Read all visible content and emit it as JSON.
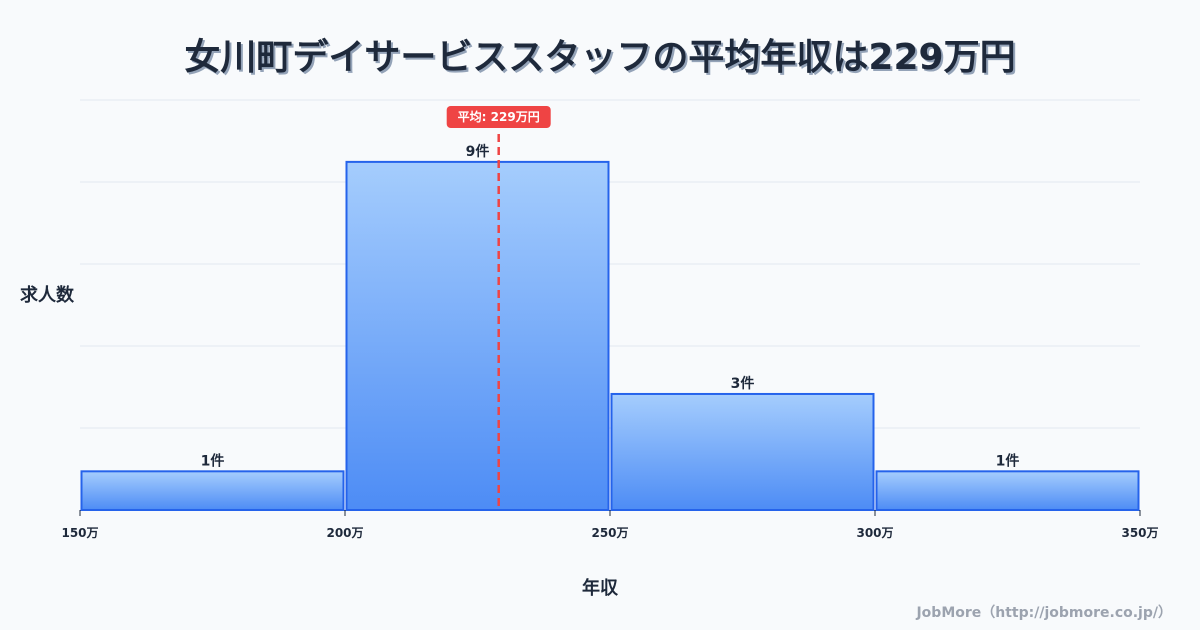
{
  "title": "女川町デイサービススタッフの平均年収は229万円",
  "axis": {
    "ylabel": "求人数",
    "xlabel": "年収"
  },
  "mean_label": "平均: 229万円",
  "credit": "JobMore（http://jobmore.co.jp/）",
  "colors": {
    "bar_top": "#a5cdfd",
    "bar_bottom": "#4d8cf5",
    "bar_stroke": "#2563eb",
    "mean_line": "#ef4444",
    "grid": "#e2e8f0",
    "text": "#1e293b"
  },
  "chart_data": {
    "type": "bar",
    "title": "女川町デイサービススタッフの平均年収は229万円",
    "xlabel": "年収",
    "ylabel": "求人数",
    "bins": [
      {
        "from": 150,
        "to": 200,
        "count": 1,
        "label": "1件"
      },
      {
        "from": 200,
        "to": 250,
        "count": 9,
        "label": "9件"
      },
      {
        "from": 250,
        "to": 300,
        "count": 3,
        "label": "3件"
      },
      {
        "from": 300,
        "to": 350,
        "count": 1,
        "label": "1件"
      }
    ],
    "categories": [
      "150万-200万",
      "200万-250万",
      "250万-300万",
      "300万-350万"
    ],
    "values": [
      1,
      9,
      3,
      1
    ],
    "x_ticks": [
      "150万",
      "200万",
      "250万",
      "300万",
      "350万"
    ],
    "x_tick_values": [
      150,
      200,
      250,
      300,
      350
    ],
    "xlim": [
      150,
      350
    ],
    "ylim": [
      0,
      10.6
    ],
    "grid": true,
    "mean": 229,
    "mean_annotation": "平均: 229万円",
    "legend": "none"
  }
}
